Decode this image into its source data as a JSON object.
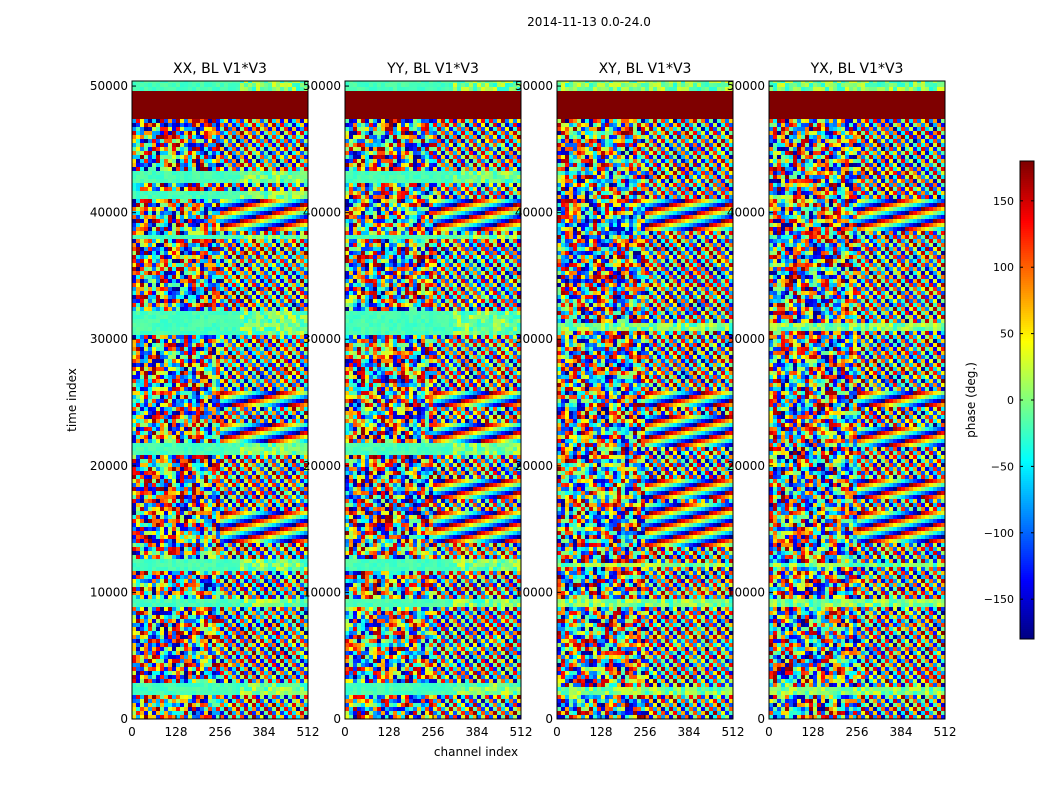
{
  "figure_title": "2014-11-13 0.0-24.0",
  "chart_data": [
    {
      "type": "heatmap",
      "title": "XX, BL V1*V3",
      "xlabel": "channel index",
      "ylabel": "time index",
      "xlim": [
        0,
        512
      ],
      "ylim": [
        0,
        50400
      ],
      "xticks": [
        "0",
        "128",
        "256",
        "384",
        "512"
      ],
      "yticks": [
        "0",
        "10000",
        "20000",
        "30000",
        "40000",
        "50000"
      ],
      "flagged_bands": [
        [
          47400,
          49600
        ]
      ],
      "flat_bands": [
        [
          1900,
          2700
        ],
        [
          9000,
          9400
        ],
        [
          11800,
          12500
        ],
        [
          20900,
          21900
        ],
        [
          30300,
          32200
        ],
        [
          37800,
          38300
        ],
        [
          41200,
          41600
        ],
        [
          42300,
          43300
        ],
        [
          49600,
          50400
        ]
      ],
      "fringe_bands": [
        [
          14000,
          16500
        ],
        [
          21500,
          23500
        ],
        [
          24500,
          26000
        ],
        [
          38500,
          41000
        ]
      ],
      "grouped": true
    },
    {
      "type": "heatmap",
      "title": "YY, BL V1*V3",
      "xlabel": "channel index",
      "xlim": [
        0,
        512
      ],
      "ylim": [
        0,
        50400
      ],
      "xticks": [
        "0",
        "128",
        "256",
        "384",
        "512"
      ],
      "yticks": [
        "0",
        "10000",
        "20000",
        "30000",
        "40000",
        "50000"
      ],
      "flagged_bands": [
        [
          47400,
          49600
        ]
      ],
      "flat_bands": [
        [
          1900,
          2700
        ],
        [
          9000,
          9400
        ],
        [
          11800,
          12500
        ],
        [
          20900,
          21900
        ],
        [
          30300,
          32200
        ],
        [
          37800,
          38300
        ],
        [
          42300,
          43300
        ],
        [
          49600,
          50400
        ]
      ],
      "fringe_bands": [
        [
          14000,
          16500
        ],
        [
          17500,
          19000
        ],
        [
          21500,
          23500
        ],
        [
          24500,
          26000
        ],
        [
          38500,
          41000
        ]
      ],
      "grouped": true
    },
    {
      "type": "heatmap",
      "title": "XY, BL V1*V3",
      "xlim": [
        0,
        512
      ],
      "ylim": [
        0,
        50400
      ],
      "xticks": [
        "0",
        "128",
        "256",
        "384",
        "512"
      ],
      "yticks": [
        "0",
        "10000",
        "20000",
        "30000",
        "40000",
        "50000"
      ],
      "flagged_bands": [
        [
          47400,
          49600
        ]
      ],
      "flat_bands": [
        [
          1900,
          2500
        ],
        [
          9000,
          9400
        ],
        [
          12000,
          12400
        ],
        [
          30800,
          31400
        ],
        [
          49600,
          50400
        ]
      ],
      "fringe_bands": [
        [
          13500,
          17000
        ],
        [
          17500,
          19000
        ],
        [
          21500,
          24000
        ],
        [
          24500,
          26000
        ],
        [
          38500,
          41000
        ]
      ],
      "grouped": false
    },
    {
      "type": "heatmap",
      "title": "YX, BL V1*V3",
      "xlim": [
        0,
        512
      ],
      "ylim": [
        0,
        50400
      ],
      "xticks": [
        "0",
        "128",
        "256",
        "384",
        "512"
      ],
      "yticks": [
        "0",
        "10000",
        "20000",
        "30000",
        "40000",
        "50000"
      ],
      "flagged_bands": [
        [
          47400,
          49600
        ]
      ],
      "flat_bands": [
        [
          1900,
          2500
        ],
        [
          9000,
          9400
        ],
        [
          12000,
          12400
        ],
        [
          30800,
          31400
        ],
        [
          49600,
          50400
        ]
      ],
      "fringe_bands": [
        [
          14000,
          16500
        ],
        [
          17500,
          19000
        ],
        [
          21500,
          23000
        ],
        [
          24500,
          26000
        ],
        [
          38500,
          41000
        ]
      ],
      "grouped": false
    },
    {
      "type": "colorbar",
      "label": "phase (deg.)",
      "range": [
        -180,
        180
      ],
      "ticks": [
        "150",
        "100",
        "50",
        "0",
        "−50",
        "−100",
        "−150"
      ],
      "tick_values": [
        150,
        100,
        50,
        0,
        -50,
        -100,
        -150
      ],
      "colormap": "jet",
      "colors": [
        "#00007f",
        "#0000ff",
        "#007fff",
        "#00ffff",
        "#7fff7f",
        "#ffff00",
        "#ff7f00",
        "#ff0000",
        "#7f0000"
      ],
      "flag_color": "#7f0000"
    }
  ]
}
